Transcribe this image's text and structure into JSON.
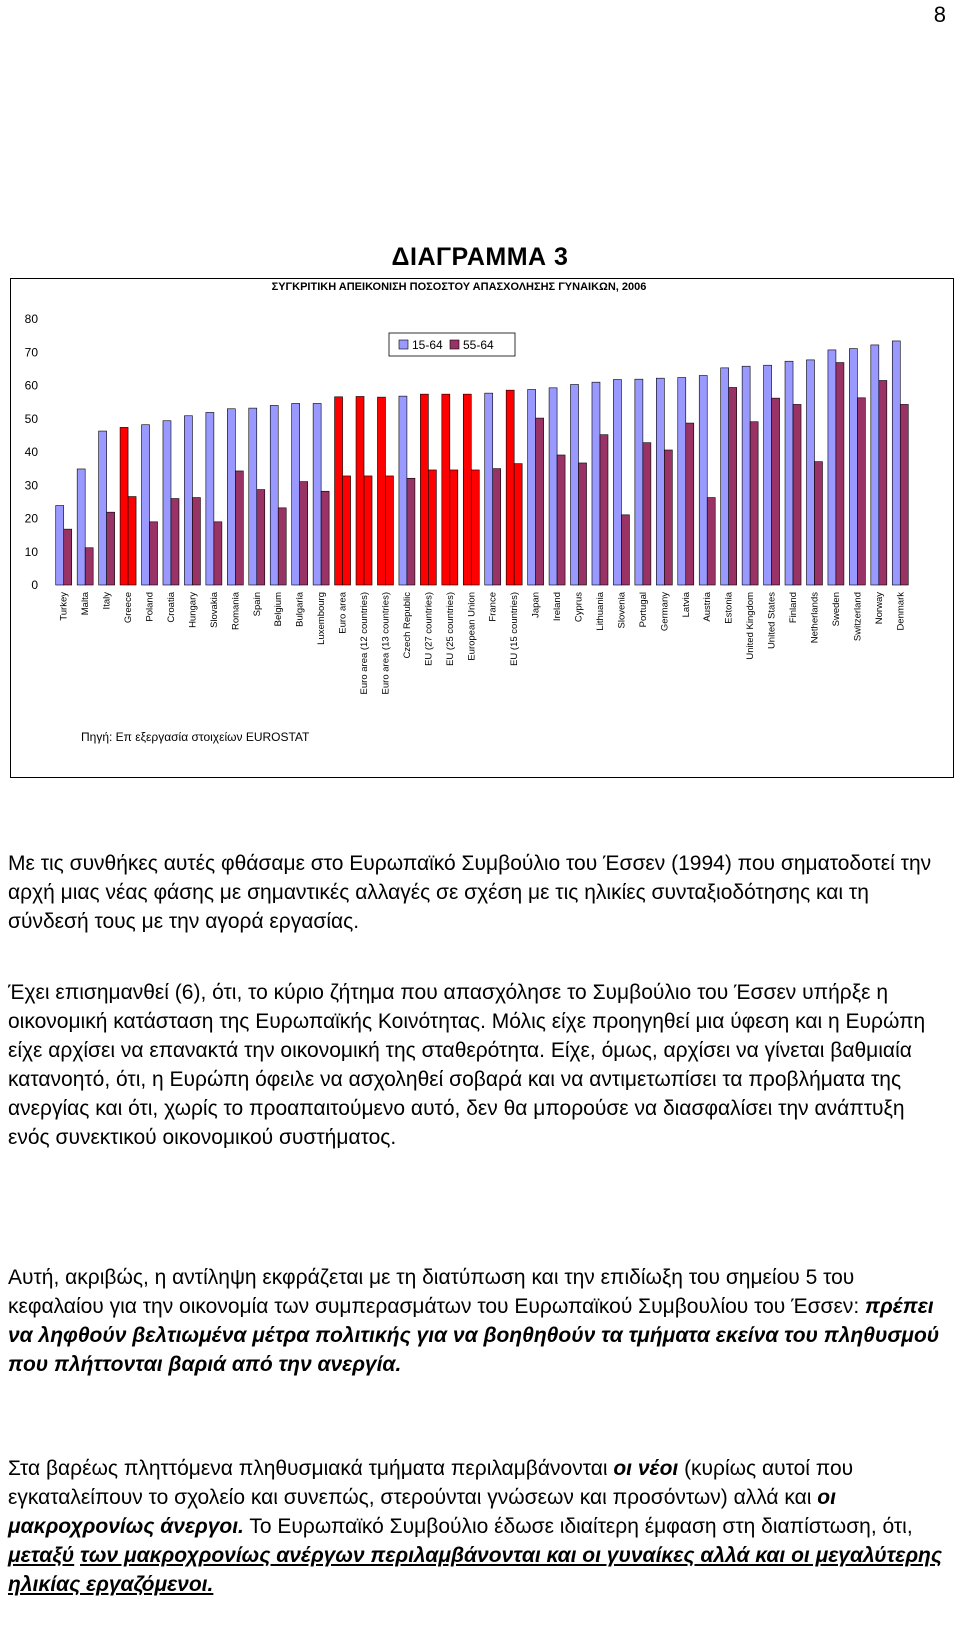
{
  "page_number": "8",
  "diagram_heading": "ΔΙΑΓΡΑΜΜΑ 3",
  "chart_data": {
    "type": "bar",
    "title": "ΣΥΓΚΡΙΤΙΚΗ ΑΠΕΙΚΟΝΙΣΗ ΠΟΣΟΣΤΟΥ ΑΠΑΣΧΟΛΗΣΗΣ ΓΥΝΑΙΚΩΝ, 2006",
    "source": "Πηγή: Επ εξεργασία στοιχείων EUROSTAT",
    "ylim": [
      0,
      80
    ],
    "yticks": [
      0,
      10,
      20,
      30,
      40,
      50,
      60,
      70,
      80
    ],
    "grid": false,
    "legend_position": "top-center",
    "categories": [
      "Turkey",
      "Malta",
      "Italy",
      "Greece",
      "Poland",
      "Croatia",
      "Hungary",
      "Slovakia",
      "Romania",
      "Spain",
      "Belgium",
      "Bulgaria",
      "Luxembourg",
      "Euro area",
      "Euro area (12 countries)",
      "Euro area (13 countries)",
      "Czech Republic",
      "EU (27 countries)",
      "EU (25 countries)",
      "European Union",
      "France",
      "EU (15 countries)",
      "Japan",
      "Ireland",
      "Cyprus",
      "Lithuania",
      "Slovenia",
      "Portugal",
      "Germany",
      "Latvia",
      "Austria",
      "Estonia",
      "United Kingdom",
      "United States",
      "Finland",
      "Netherlands",
      "Sweden",
      "Switzerland",
      "Norway",
      "Denmark"
    ],
    "highlighted": [
      "Greece",
      "Euro area",
      "Euro area (12 countries)",
      "Euro area (13 countries)",
      "EU (27 countries)",
      "EU (25 countries)",
      "European Union",
      "EU (15 countries)"
    ],
    "highlight_color": "#ff0000",
    "series": [
      {
        "name": "15-64",
        "color": "#9999ff",
        "values": [
          23.9,
          34.9,
          46.3,
          47.4,
          48.2,
          49.4,
          50.9,
          51.9,
          53.0,
          53.2,
          54.0,
          54.6,
          54.6,
          56.6,
          56.7,
          56.5,
          56.8,
          57.4,
          57.4,
          57.4,
          57.7,
          58.6,
          58.8,
          59.3,
          60.3,
          61.0,
          61.8,
          61.9,
          62.2,
          62.4,
          63.0,
          65.3,
          65.8,
          66.1,
          67.3,
          67.7,
          70.7,
          71.1,
          72.2,
          73.4
        ]
      },
      {
        "name": "55-64",
        "color": "#993366",
        "values": [
          16.8,
          11.2,
          21.9,
          26.6,
          19.0,
          26.0,
          26.3,
          19.0,
          34.3,
          28.7,
          23.2,
          31.1,
          28.2,
          32.8,
          32.8,
          32.8,
          32.1,
          34.6,
          34.6,
          34.6,
          35.0,
          36.5,
          50.2,
          39.1,
          36.7,
          45.2,
          21.1,
          42.8,
          40.6,
          48.7,
          26.3,
          59.4,
          49.1,
          56.2,
          54.3,
          37.1,
          66.9,
          56.3,
          61.5,
          54.3
        ]
      }
    ]
  },
  "paragraphs": {
    "p1": "Με τις συνθήκες αυτές φθάσαμε στο Ευρωπαϊκό Συμβούλιο του Έσσεν (1994) που σηματοδοτεί την αρχή μιας νέας φάσης με σημαντικές αλλαγές σε σχέση με τις ηλικίες συνταξιοδότησης και τη σύνδεσή τους με την αγορά εργασίας.",
    "p2": "Έχει επισημανθεί (6), ότι, το κύριο ζήτημα που απασχόλησε το Συμβούλιο του Έσσεν υπήρξε η οικονομική κατάσταση της Ευρωπαϊκής Κοινότητας. Μόλις είχε προηγηθεί μια ύφεση και η Ευρώπη είχε αρχίσει να επανακτά την οικονομική της σταθερότητα. Είχε, όμως, αρχίσει να γίνεται βαθμιαία κατανοητό, ότι, η Ευρώπη όφειλε να ασχοληθεί σοβαρά και να αντιμετωπίσει τα προβλήματα της ανεργίας και ότι, χωρίς το προαπαιτούμενο αυτό, δεν θα μπορούσε να διασφαλίσει την ανάπτυξη ενός συνεκτικού οικονομικού συστήματος.",
    "p3_a": "Αυτή, ακριβώς, η αντίληψη εκφράζεται με τη διατύπωση και την επιδίωξη του σημείου 5 του κεφαλαίου για την οικονομία των συμπερασμάτων του Ευρωπαϊκού Συμβουλίου του Έσσεν: ",
    "p3_b": "πρέπει να ληφθούν βελτιωμένα μέτρα πολιτικής για να βοηθηθούν τα τμήματα εκείνα του πληθυσμού που πλήττονται βαριά από την ανεργία.",
    "p4_a": "Στα βαρέως πληττόμενα πληθυσμιακά τμήματα περιλαμβάνονται ",
    "p4_b": "οι νέοι",
    "p4_c": " (κυρίως αυτοί που εγκαταλείπουν το σχολείο και συνεπώς, στερούνται γνώσεων και προσόντων) αλλά και ",
    "p4_d": "οι μακροχρονίως άνεργοι.",
    "p4_e": " Το Ευρωπαϊκό Συμβούλιο έδωσε ιδιαίτερη έμφαση στη διαπίστωση, ότι, ",
    "p4_f": "μεταξύ",
    "p4_g": " ",
    "p4_h": "των μακροχρονίως ανέργων περιλαμβάνονται και οι γυναίκες αλλά και οι μεγαλύτερης ηλικίας εργαζόμενοι."
  }
}
